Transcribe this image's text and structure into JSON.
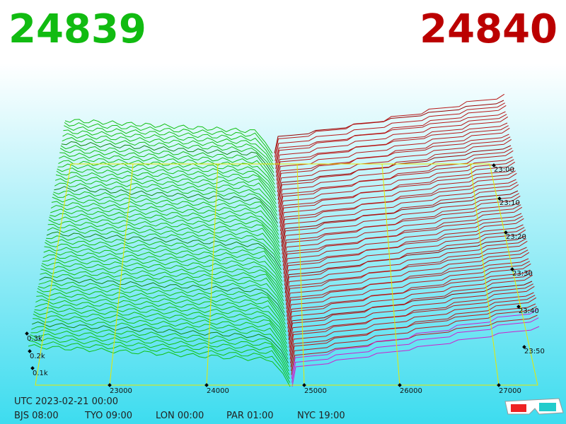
{
  "header": {
    "bid": "24839",
    "ask": "24840"
  },
  "axes": {
    "volume_labels": [
      "0.3k",
      "0.2k",
      "0.1k"
    ],
    "price_labels": [
      "23000",
      "24000",
      "25000",
      "26000",
      "27000"
    ],
    "time_labels": [
      "23:00",
      "23:10",
      "23:20",
      "23:30",
      "23:40",
      "23:50"
    ]
  },
  "footer": {
    "utc": "UTC 2023-02-21 00:00",
    "zones": [
      "BJS 08:00",
      "TYO 09:00",
      "LON 00:00",
      "PAR 01:00",
      "NYC 19:00"
    ]
  }
}
